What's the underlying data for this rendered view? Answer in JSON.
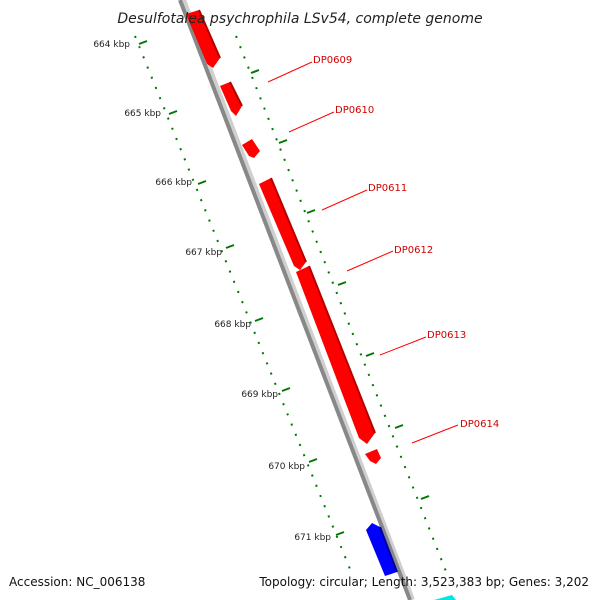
{
  "title": "Desulfotalea psychrophila LSv54, complete genome",
  "footer": {
    "accession": "Accession: NC_006138",
    "summary": "Topology: circular; Length: 3,523,383 bp; Genes: 3,202"
  },
  "colors": {
    "forward_gene": "#ff0000",
    "reverse_gene": "#0000ff",
    "other_feature": "#00e0e0",
    "backbone": "#888888",
    "tick": "#007700",
    "label_line": "#ff0000"
  },
  "kbp_ticks": [
    "664 kbp",
    "665 kbp",
    "666 kbp",
    "667 kbp",
    "668 kbp",
    "669 kbp",
    "670 kbp",
    "671 kbp"
  ],
  "genes": [
    {
      "label": "DP0609"
    },
    {
      "label": "DP0610"
    },
    {
      "label": "DP0611"
    },
    {
      "label": "DP0612"
    },
    {
      "label": "DP0613"
    },
    {
      "label": "DP0614"
    }
  ]
}
